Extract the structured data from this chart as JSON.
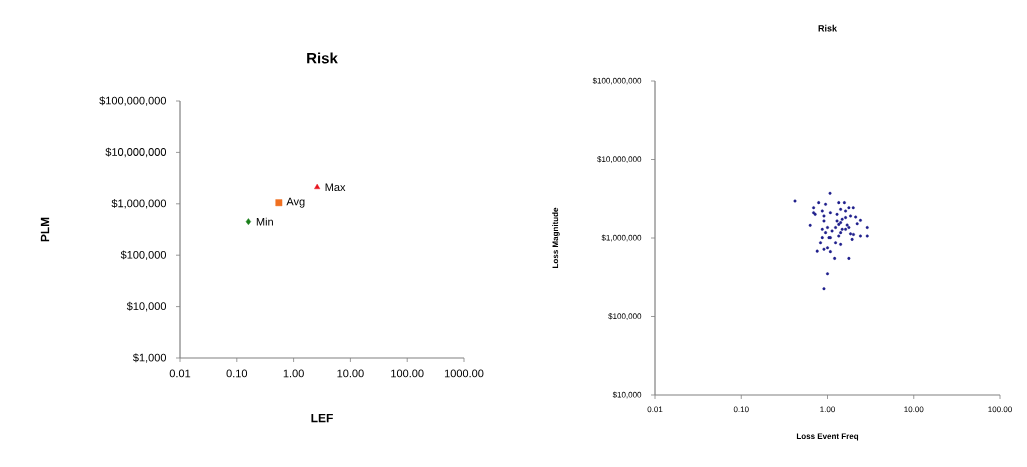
{
  "chart_data": [
    {
      "type": "scatter",
      "title": "Risk",
      "xlabel": "LEF",
      "ylabel": "PLM",
      "log": "xy",
      "xlim": [
        0.01,
        1000
      ],
      "ylim": [
        1000,
        100000000
      ],
      "xticks": [
        {
          "value": 0.01,
          "label": "0.01"
        },
        {
          "value": 0.1,
          "label": "0.10"
        },
        {
          "value": 1,
          "label": "1.00"
        },
        {
          "value": 10,
          "label": "10.00"
        },
        {
          "value": 100,
          "label": "100.00"
        },
        {
          "value": 1000,
          "label": "1000.00"
        }
      ],
      "yticks": [
        {
          "value": 1000,
          "label": "$1,000"
        },
        {
          "value": 10000,
          "label": "$10,000"
        },
        {
          "value": 100000,
          "label": "$100,000"
        },
        {
          "value": 1000000,
          "label": "$1,000,000"
        },
        {
          "value": 10000000,
          "label": "$10,000,000"
        },
        {
          "value": 100000000,
          "label": "$100,000,000"
        }
      ],
      "series": [
        {
          "name": "Max",
          "color": "#e8141e",
          "marker": "triangle",
          "x": [
            2.6
          ],
          "values": [
            2100000
          ]
        },
        {
          "name": "Avg",
          "color": "#f07020",
          "marker": "square",
          "x": [
            0.55
          ],
          "values": [
            1050000
          ]
        },
        {
          "name": "Min",
          "color": "#1a7f1a",
          "marker": "diamond",
          "x": [
            0.16
          ],
          "values": [
            450000
          ]
        }
      ]
    },
    {
      "type": "scatter",
      "title": "Risk",
      "xlabel": "Loss Event Freq",
      "ylabel": "Loss Magnitude",
      "log": "xy",
      "xlim": [
        0.01,
        100
      ],
      "ylim": [
        10000,
        100000000
      ],
      "xticks": [
        {
          "value": 0.01,
          "label": "0.01"
        },
        {
          "value": 0.1,
          "label": "0.10"
        },
        {
          "value": 1,
          "label": "1.00"
        },
        {
          "value": 10,
          "label": "10.00"
        },
        {
          "value": 100,
          "label": "100.00"
        }
      ],
      "yticks": [
        {
          "value": 10000,
          "label": "$10,000"
        },
        {
          "value": 100000,
          "label": "$100,000"
        },
        {
          "value": 1000000,
          "label": "$1,000,000"
        },
        {
          "value": 10000000,
          "label": "$10,000,000"
        },
        {
          "value": 100000000,
          "label": "$100,000,000"
        }
      ],
      "series": [
        {
          "color": "#1f1f8c",
          "marker": "circle",
          "x": [
            1.07,
            0.42,
            0.69,
            0.79,
            0.95,
            1.35,
            1.57,
            1.77,
            1.99,
            0.69,
            0.87,
            1.08,
            1.42,
            1.62,
            0.72,
            0.91,
            1.29,
            1.85,
            2.12,
            2.41,
            1.48,
            1.62,
            1.42,
            0.91,
            0.63,
            1.35,
            1.69,
            2.21,
            1.0,
            0.87,
            1.24,
            1.48,
            1.77,
            2.89,
            0.95,
            1.13,
            1.42,
            1.85,
            2.0,
            2.41,
            2.89,
            0.87,
            1.04,
            1.35,
            1.93,
            0.83,
            1.24,
            1.42,
            1.0,
            0.76,
            0.91,
            1.08,
            1.21,
            1.77,
            1.0,
            0.91,
            1.62,
            1.29,
            1.08
          ],
          "values": [
            3710000,
            2960000,
            2430000,
            2820000,
            2690000,
            2820000,
            2820000,
            2430000,
            2430000,
            2100000,
            2210000,
            2100000,
            2320000,
            2210000,
            2000000,
            1910000,
            2000000,
            1910000,
            1850000,
            1680000,
            1730000,
            1820000,
            1570000,
            1650000,
            1450000,
            1490000,
            1460000,
            1520000,
            1360000,
            1290000,
            1360000,
            1290000,
            1360000,
            1360000,
            1170000,
            1230000,
            1170000,
            1130000,
            1110000,
            1060000,
            1060000,
            1010000,
            1010000,
            1060000,
            960000,
            870000,
            870000,
            830000,
            750000,
            680000,
            720000,
            670000,
            550000,
            550000,
            350000,
            226000,
            1290000,
            1650000,
            1010000
          ]
        }
      ]
    }
  ]
}
